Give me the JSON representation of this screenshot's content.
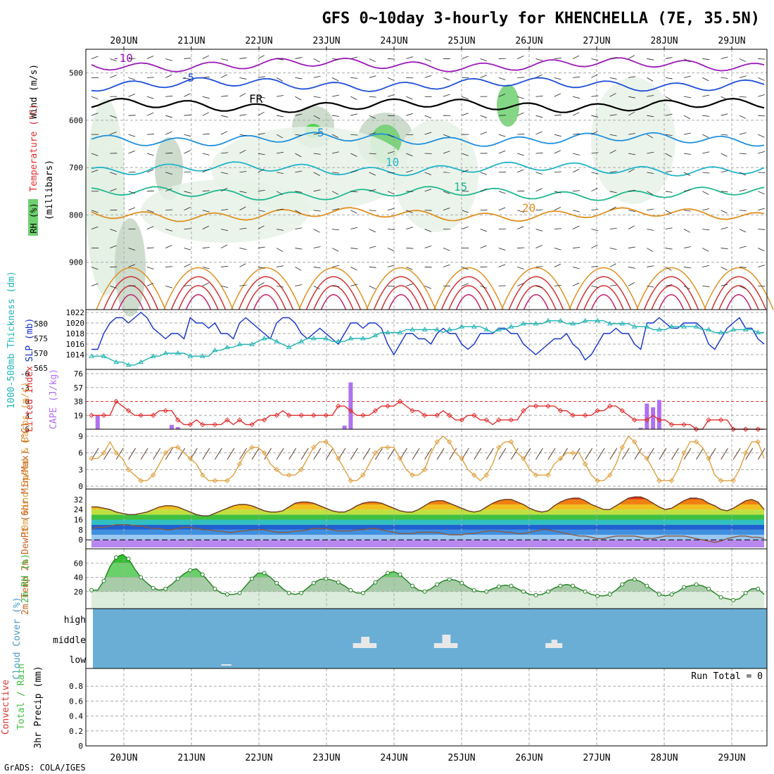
{
  "title": "GFS 0~10day 3-hourly for KHENCHELLA (7E, 35.5N)",
  "dates": [
    "20JUN",
    "21JUN",
    "22JUN",
    "23JUN",
    "24JUN",
    "25JUN",
    "26JUN",
    "27JUN",
    "28JUN",
    "29JUN"
  ],
  "credit": "GrADS: COLA/IGES",
  "run_total": "Run Total = 0",
  "cloud_levels": [
    "high",
    "middle",
    "low"
  ],
  "colors": {
    "rh_green": "#6fd06f",
    "rh_dark": "#3cc43c",
    "rh_grey": "#c8d4c8",
    "slp": "#1432c8",
    "thickness": "#20b4b4",
    "lifted": "#e03030",
    "cape": "#b070f0",
    "wind10": "#e0a040",
    "temp": "#c86420",
    "dewpt": "#c86420",
    "rh2m": "#40b040",
    "cloud": "#6aaed6"
  },
  "chart_data": [
    {
      "type": "line",
      "name": "upper_air",
      "ylabel_parts": [
        "Wind (m/s)",
        "Temperature (°C)"
      ],
      "y_units": "(millibars)",
      "rh_label": "RH (%)",
      "yticks": [
        500,
        600,
        700,
        800,
        900
      ],
      "ylim": [
        1000,
        450
      ],
      "contours": [
        {
          "value": "-10",
          "label": "-10",
          "color": "#9b1ab8"
        },
        {
          "value": "-5",
          "label": "-5",
          "color": "#1e4fd8"
        },
        {
          "value": "FR",
          "label": "FR",
          "color": "#000000"
        },
        {
          "value": "5",
          "label": "5",
          "color": "#1e90e0"
        },
        {
          "value": "10",
          "label": "10",
          "color": "#20b4c8"
        },
        {
          "value": "15",
          "label": "15",
          "color": "#20b890"
        },
        {
          "value": "20",
          "label": "20",
          "color": "#e09020"
        }
      ]
    },
    {
      "type": "line",
      "name": "slp_thickness",
      "ylabel_left": "1000-500mb Thickness (dm)",
      "ylabel_right": "SLP (mb)",
      "thickness_ticks": [
        565,
        570,
        575,
        580
      ],
      "slp_ticks": [
        1014,
        1016,
        1018,
        1020,
        1022
      ],
      "slp": [
        1015,
        1015,
        1018,
        1020,
        1021,
        1021,
        1020,
        1021,
        1022,
        1021,
        1019,
        1018,
        1017,
        1018,
        1018,
        1017,
        1021,
        1020,
        1020,
        1019,
        1020,
        1018,
        1018,
        1017,
        1020,
        1021,
        1020,
        1019,
        1018,
        1017,
        1020,
        1021,
        1021,
        1020,
        1018,
        1017,
        1018,
        1019,
        1018,
        1017,
        1016,
        1018,
        1020,
        1020,
        1019,
        1020,
        1020,
        1019,
        1016,
        1014,
        1016,
        1018,
        1018,
        1017,
        1017,
        1016,
        1018,
        1019,
        1018,
        1018,
        1016,
        1015,
        1016,
        1018,
        1018,
        1018,
        1019,
        1019,
        1018,
        1018,
        1016,
        1015,
        1014,
        1015,
        1016,
        1017,
        1017,
        1018,
        1016,
        1015,
        1013,
        1014,
        1016,
        1018,
        1018,
        1019,
        1018,
        1018,
        1016,
        1015,
        1020,
        1020,
        1021,
        1020,
        1019,
        1019,
        1020,
        1020,
        1020,
        1019,
        1016,
        1015,
        1017,
        1019,
        1020,
        1021,
        1019,
        1019,
        1017,
        1016
      ],
      "thickness": [
        569,
        569,
        569,
        568,
        567,
        567,
        566,
        566,
        567,
        568,
        569,
        569,
        570,
        570,
        570,
        570,
        569,
        569,
        569,
        569,
        571,
        571,
        572,
        572,
        573,
        573,
        573,
        574,
        575,
        575,
        574,
        573,
        572,
        573,
        574,
        575,
        575,
        575,
        575,
        574,
        574,
        574,
        575,
        575,
        575,
        575,
        576,
        577,
        577,
        577,
        577,
        578,
        578,
        578,
        578,
        578,
        578,
        577,
        578,
        578,
        579,
        579,
        579,
        579,
        578,
        577,
        578,
        578,
        579,
        579,
        580,
        580,
        580,
        580,
        581,
        581,
        581,
        580,
        580,
        580,
        581,
        581,
        581,
        581,
        580,
        580,
        580,
        580,
        579,
        579,
        579,
        578,
        578,
        578,
        579,
        579,
        579,
        579,
        579,
        578,
        578,
        577,
        577,
        577,
        578,
        578,
        578,
        578,
        577,
        577
      ]
    },
    {
      "type": "bar",
      "name": "lifted_cape",
      "ylabel_left": "Lifted Index",
      "ylabel_right": "CAPE (J/kg)",
      "li_ticks": [
        6,
        3,
        0,
        -3,
        -6
      ],
      "cape_ticks": [
        19,
        38,
        57,
        76
      ],
      "li_range": [
        6,
        -6
      ],
      "cape_range": [
        0,
        76
      ],
      "lifted_index": [
        3,
        3,
        3,
        3,
        0,
        1,
        2,
        3,
        3,
        3,
        3,
        2,
        2,
        2,
        4,
        5,
        5,
        4,
        5,
        5,
        5,
        5,
        4,
        5,
        4,
        5,
        5,
        4,
        4,
        3,
        3,
        2,
        3,
        3,
        3,
        3,
        3,
        3,
        3,
        3,
        1,
        1,
        2,
        3,
        3,
        3,
        2,
        1,
        1,
        1,
        0,
        1,
        2,
        2,
        3,
        3,
        3,
        2,
        3,
        4,
        4,
        3,
        3,
        4,
        4,
        5,
        4,
        4,
        4,
        4,
        2,
        1,
        1,
        1,
        1,
        1,
        2,
        2,
        3,
        3,
        3,
        3,
        2,
        2,
        1,
        1,
        2,
        3,
        4,
        4,
        4,
        3,
        4,
        4,
        5,
        5,
        5,
        5,
        6,
        6,
        4,
        4,
        4,
        4,
        6,
        6,
        6,
        6,
        6,
        6
      ],
      "cape": [
        0,
        19,
        0,
        0,
        0,
        0,
        0,
        0,
        0,
        0,
        0,
        0,
        0,
        6,
        3,
        0,
        0,
        0,
        0,
        0,
        0,
        0,
        0,
        0,
        0,
        0,
        0,
        0,
        0,
        0,
        0,
        0,
        0,
        0,
        0,
        0,
        0,
        0,
        0,
        0,
        0,
        5,
        64,
        0,
        0,
        0,
        0,
        0,
        0,
        0,
        0,
        0,
        0,
        0,
        0,
        0,
        0,
        0,
        0,
        0,
        0,
        0,
        0,
        0,
        0,
        0,
        0,
        0,
        0,
        0,
        0,
        0,
        0,
        0,
        0,
        0,
        0,
        0,
        0,
        0,
        0,
        0,
        0,
        0,
        0,
        0,
        0,
        0,
        0,
        2,
        35,
        30,
        40,
        0,
        0,
        0,
        0,
        0,
        0,
        0,
        0,
        0,
        0,
        0,
        0,
        0,
        0,
        0,
        0,
        0
      ]
    },
    {
      "type": "line",
      "name": "wind10m",
      "ylabel": "10m Wind Speed & Barbs (m/s)",
      "yticks": [
        0,
        3,
        6,
        9
      ],
      "ylim": [
        0,
        9
      ],
      "speed": [
        5,
        5,
        6,
        8,
        6,
        5,
        3,
        2,
        1,
        1,
        2,
        4,
        6,
        7,
        7,
        6,
        5,
        4,
        2,
        1,
        1,
        1,
        1,
        2,
        4,
        6,
        7,
        7,
        6,
        4,
        3,
        2,
        2,
        2,
        3,
        5,
        7,
        8,
        8,
        7,
        5,
        3,
        1,
        1,
        2,
        4,
        6,
        7,
        7,
        7,
        5,
        3,
        2,
        2,
        3,
        6,
        8,
        9,
        8,
        6,
        5,
        3,
        2,
        1,
        2,
        4,
        7,
        8,
        8,
        6,
        5,
        3,
        2,
        2,
        2,
        4,
        5,
        6,
        6,
        6,
        4,
        2,
        1,
        1,
        2,
        4,
        7,
        9,
        8,
        6,
        5,
        3,
        1,
        1,
        1,
        3,
        6,
        8,
        8,
        7,
        5,
        2,
        1,
        1,
        1,
        3,
        6,
        8,
        8,
        5
      ]
    },
    {
      "type": "area",
      "name": "temp_dewpt",
      "ylabel": "2m Temp 2m DewPt (6hr Min/Max) (°C)",
      "yticks": [
        0,
        8,
        16,
        24,
        32
      ],
      "ylim": [
        -6,
        38
      ],
      "temp": [
        26,
        26,
        25,
        24,
        22,
        21,
        20,
        20,
        21,
        22,
        24,
        26,
        27,
        27,
        26,
        24,
        22,
        20,
        19,
        19,
        21,
        23,
        25,
        27,
        28,
        28,
        27,
        25,
        23,
        22,
        22,
        23,
        26,
        29,
        30,
        30,
        29,
        27,
        25,
        23,
        22,
        22,
        24,
        27,
        29,
        30,
        30,
        29,
        27,
        25,
        23,
        22,
        22,
        24,
        27,
        30,
        31,
        31,
        29,
        27,
        25,
        23,
        22,
        23,
        26,
        29,
        31,
        32,
        32,
        30,
        28,
        25,
        23,
        22,
        23,
        27,
        30,
        32,
        33,
        33,
        31,
        28,
        26,
        24,
        24,
        27,
        30,
        33,
        34,
        34,
        32,
        29,
        26,
        24,
        25,
        28,
        31,
        33,
        33,
        32,
        29,
        27,
        24,
        23,
        25,
        28,
        31,
        32,
        30,
        24
      ],
      "dewpt": [
        9,
        10,
        10,
        11,
        12,
        12,
        12,
        11,
        11,
        10,
        9,
        9,
        8,
        8,
        9,
        10,
        10,
        9,
        8,
        8,
        7,
        7,
        6,
        6,
        7,
        7,
        8,
        8,
        8,
        7,
        6,
        6,
        6,
        7,
        7,
        8,
        9,
        9,
        9,
        8,
        7,
        7,
        7,
        8,
        8,
        9,
        9,
        8,
        7,
        6,
        5,
        5,
        5,
        6,
        6,
        6,
        6,
        5,
        4,
        4,
        4,
        5,
        5,
        6,
        7,
        7,
        7,
        6,
        6,
        5,
        5,
        6,
        7,
        8,
        8,
        7,
        6,
        5,
        4,
        3,
        3,
        2,
        1,
        1,
        2,
        3,
        3,
        3,
        3,
        2,
        1,
        1,
        2,
        3,
        3,
        3,
        3,
        2,
        1,
        0,
        -1,
        -2,
        -1,
        1,
        2,
        3,
        3,
        2,
        2,
        1
      ]
    },
    {
      "type": "area",
      "name": "rh2m",
      "ylabel": "2m RH (%)",
      "yticks": [
        20,
        40,
        60
      ],
      "ylim": [
        0,
        80
      ],
      "rh": [
        22,
        22,
        35,
        55,
        68,
        72,
        66,
        52,
        40,
        32,
        25,
        22,
        24,
        30,
        38,
        45,
        50,
        52,
        44,
        34,
        24,
        18,
        16,
        16,
        18,
        28,
        38,
        46,
        46,
        40,
        32,
        24,
        18,
        16,
        18,
        25,
        32,
        37,
        38,
        36,
        33,
        28,
        22,
        18,
        18,
        25,
        33,
        40,
        46,
        48,
        44,
        36,
        28,
        22,
        20,
        24,
        30,
        35,
        37,
        36,
        32,
        26,
        22,
        20,
        20,
        24,
        27,
        29,
        28,
        24,
        20,
        16,
        15,
        16,
        20,
        25,
        28,
        30,
        28,
        24,
        20,
        16,
        14,
        14,
        16,
        22,
        30,
        36,
        37,
        34,
        28,
        22,
        16,
        14,
        16,
        20,
        26,
        28,
        30,
        28,
        24,
        18,
        12,
        10,
        8,
        10,
        18,
        24,
        24,
        16
      ]
    },
    {
      "type": "heatmap",
      "name": "cloud_cover",
      "ylabel": "Cloud Cover (%)",
      "levels": [
        "high",
        "middle",
        "low"
      ],
      "middle_blocks": [
        {
          "day": 3,
          "frac_start": 0.6,
          "frac_end": 0.95,
          "value": 15
        },
        {
          "day": 4,
          "frac_start": 0.8,
          "frac_end": 1.15,
          "value": 20
        },
        {
          "day": 6,
          "frac_start": 0.45,
          "frac_end": 0.7,
          "value": 8
        }
      ],
      "low_blocks": [
        {
          "day": 1,
          "frac_start": 0.65,
          "frac_end": 0.8,
          "value": 2
        }
      ]
    },
    {
      "type": "line",
      "name": "precip",
      "ylabel_parts": [
        "Total / Rain",
        "Convective",
        "3hr Precip (mm)"
      ],
      "yticks": [
        0,
        0.2,
        0.4,
        0.6,
        0.8
      ],
      "ylim": [
        0,
        1
      ],
      "values": []
    }
  ]
}
